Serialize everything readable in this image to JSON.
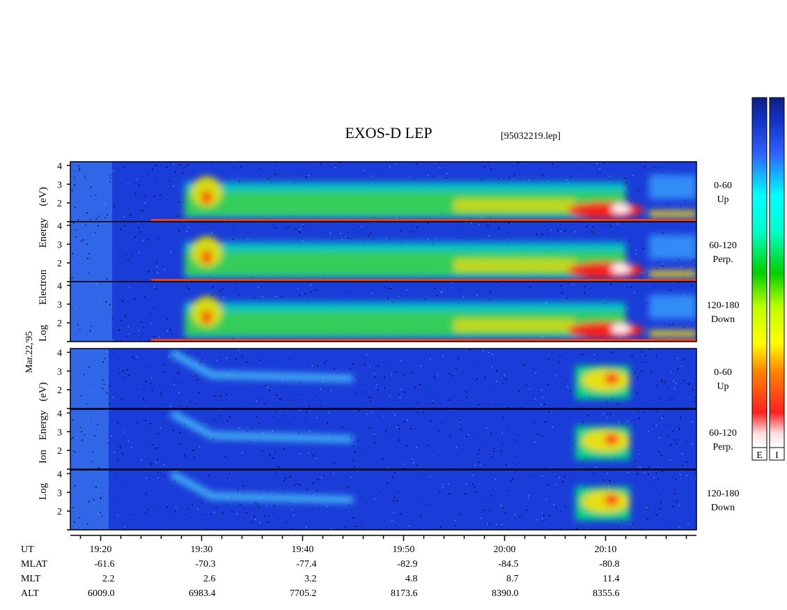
{
  "title": "EXOS-D LEP",
  "file_label": "[95032219.lep]",
  "date_label": "Mar.22,'95",
  "colorbar_labels": [
    "E",
    "I"
  ],
  "chart_data": {
    "type": "heatmap",
    "x_range": [
      "19:17",
      "20:19"
    ],
    "y_range": [
      1,
      4.2
    ],
    "y_ticks": [
      1,
      2,
      3,
      4
    ],
    "y_tick_labels": [
      "2",
      "3",
      "4"
    ],
    "groups": [
      {
        "name": "electron",
        "ylabel": [
          "Log",
          "Electron",
          "Energy",
          "(eV)"
        ],
        "panels": [
          {
            "angle": "0-60",
            "dir": "Up"
          },
          {
            "angle": "60-120",
            "dir": "Perp."
          },
          {
            "angle": "120-180",
            "dir": "Down"
          }
        ]
      },
      {
        "name": "ion",
        "ylabel": [
          "Log",
          "Ion",
          "Energy",
          "(eV)"
        ],
        "panels": [
          {
            "angle": "0-60",
            "dir": "Up"
          },
          {
            "angle": "60-120",
            "dir": "Perp."
          },
          {
            "angle": "120-180",
            "dir": "Down"
          }
        ]
      }
    ],
    "ephemeris": {
      "labels": [
        "UT",
        "MLAT",
        "MLT",
        "ALT"
      ],
      "times": [
        "19:20",
        "19:30",
        "19:40",
        "19:50",
        "20:00",
        "20:10"
      ],
      "mlat": [
        "-61.6",
        "-70.3",
        "-77.4",
        "-82.9",
        "-84.5",
        "-80.8"
      ],
      "mlt": [
        "2.2",
        "2.6",
        "3.2",
        "4.8",
        "8.7",
        "11.4"
      ],
      "alt": [
        "6009.0",
        "6983.4",
        "7705.2",
        "8173.6",
        "8390.0",
        "8355.6"
      ]
    },
    "colorbar": {
      "colors": [
        "#ffffff",
        "#ff2020",
        "#ff8800",
        "#ffff00",
        "#00d000",
        "#00ffff",
        "#3060ff",
        "#102080"
      ]
    }
  }
}
